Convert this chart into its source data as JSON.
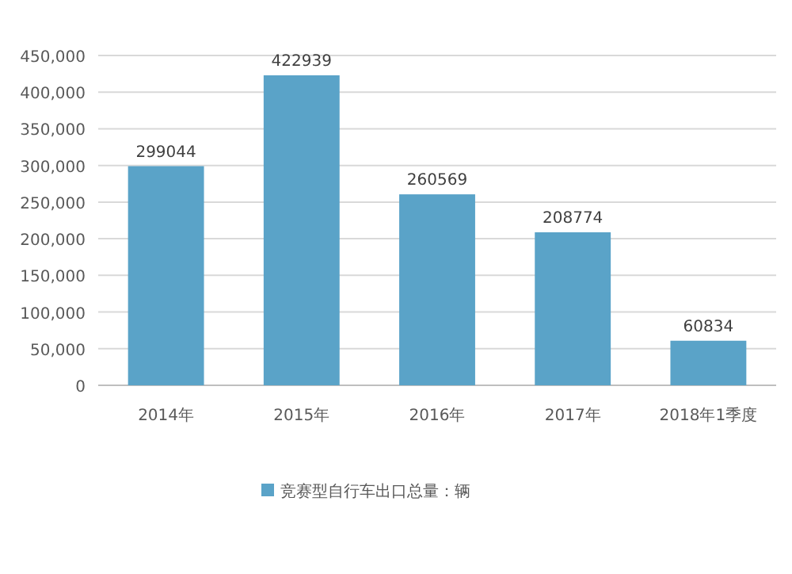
{
  "chart_data": {
    "type": "bar",
    "categories": [
      "2014年",
      "2015年",
      "2016年",
      "2017年",
      "2018年1季度"
    ],
    "series": [
      {
        "name": "竞赛型自行车出口总量：辆",
        "color": "#5aa3c8",
        "values": [
          299044,
          422939,
          260569,
          208774,
          60834
        ]
      }
    ],
    "ylim": [
      0,
      450000
    ],
    "yticks": [
      {
        "value": 0,
        "label": "0"
      },
      {
        "value": 50000,
        "label": "50,000"
      },
      {
        "value": 100000,
        "label": "100,000"
      },
      {
        "value": 150000,
        "label": "150,000"
      },
      {
        "value": 200000,
        "label": "200,000"
      },
      {
        "value": 250000,
        "label": "250,000"
      },
      {
        "value": 300000,
        "label": "300,000"
      },
      {
        "value": 350000,
        "label": "350,000"
      },
      {
        "value": 400000,
        "label": "400,000"
      },
      {
        "value": 450000,
        "label": "450,000"
      }
    ],
    "grid": "y",
    "legend": "bottom",
    "data_labels": true
  }
}
